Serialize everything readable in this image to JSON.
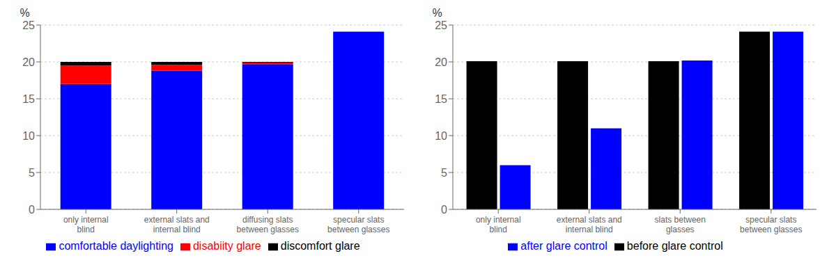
{
  "chart_data": [
    {
      "type": "bar",
      "stacked": true,
      "categories": [
        "only internal\nblind",
        "external slats and\ninternal blind",
        "diffusing slats\nbetween glasses",
        "specular slats\nbetween glasses"
      ],
      "series": [
        {
          "name": "comfortable daylighting",
          "color": "#0000FF",
          "values": [
            17.0,
            18.8,
            19.7,
            24.1
          ]
        },
        {
          "name": "disabiity glare",
          "color": "#FF0000",
          "values": [
            2.5,
            0.8,
            0.2,
            0.0
          ]
        },
        {
          "name": "discomfort glare",
          "color": "#000000",
          "values": [
            0.5,
            0.4,
            0.1,
            0.0
          ]
        }
      ],
      "ylabel": "%",
      "ylim": [
        0,
        25
      ],
      "yticks": [
        0,
        5,
        10,
        15,
        20,
        25
      ],
      "grid": true,
      "legend": "bottom"
    },
    {
      "type": "bar",
      "stacked": false,
      "categories": [
        "only internal\nblind",
        "external slats and\ninternal blind",
        "slats between\nglasses",
        "specular slats\nbetween glasses"
      ],
      "series": [
        {
          "name": "before glare control",
          "color": "#000000",
          "values": [
            20.1,
            20.1,
            20.1,
            24.1
          ]
        },
        {
          "name": "after glare control",
          "color": "#0000FF",
          "values": [
            6.0,
            11.0,
            20.2,
            24.1
          ]
        }
      ],
      "ylabel": "%",
      "ylim": [
        0,
        25
      ],
      "yticks": [
        0,
        5,
        10,
        15,
        20,
        25
      ],
      "grid": true,
      "legend": "bottom"
    }
  ]
}
